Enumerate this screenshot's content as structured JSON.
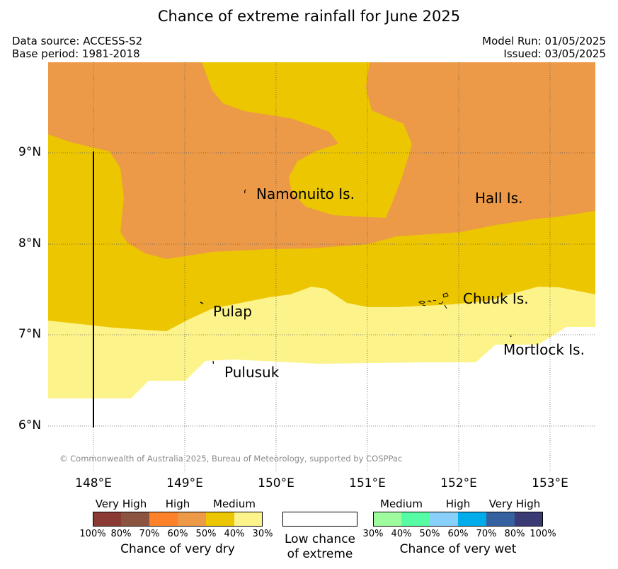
{
  "title": "Chance of extreme rainfall for June 2025",
  "meta": {
    "data_source": "Data source: ACCESS-S2",
    "base_period": "Base period: 1981-2018",
    "model_run": "Model Run: 01/05/2025",
    "issued": "Issued: 03/05/2025"
  },
  "map": {
    "places": [
      {
        "name": "Namonuito Is."
      },
      {
        "name": "Hall Is."
      },
      {
        "name": "Pulap"
      },
      {
        "name": "Chuuk Is."
      },
      {
        "name": "Mortlock Is."
      },
      {
        "name": "Pulusuk"
      }
    ],
    "lat_labels": [
      "9°N",
      "8°N",
      "7°N",
      "6°N"
    ],
    "lon_labels": [
      "148°E",
      "149°E",
      "150°E",
      "151°E",
      "152°E",
      "153°E"
    ],
    "copyright": "© Commonwealth of Australia 2025, Bureau of Meteorology, supported by COSPPac",
    "zone_colors": {
      "high_dry": "#ec9a48",
      "medium_dry": "#ecc600",
      "low_medium_dry": "#fdf38b",
      "low_chance": "#ffffff"
    }
  },
  "legend": {
    "dry": {
      "groups": [
        "Very High",
        "High",
        "Medium"
      ],
      "colors": [
        "#8b3a33",
        "#8b5440",
        "#fd8128",
        "#ec9a48",
        "#ecc600",
        "#fdf38b"
      ],
      "ticks": [
        "100%",
        "80%",
        "70%",
        "60%",
        "50%",
        "40%",
        "30%"
      ],
      "caption": "Chance of very dry"
    },
    "neutral": {
      "caption_line1": "Low chance",
      "caption_line2": "of extreme",
      "color": "#ffffff"
    },
    "wet": {
      "groups": [
        "Medium",
        "High",
        "Very High"
      ],
      "colors": [
        "#9efc9e",
        "#55fca4",
        "#88cffa",
        "#00acea",
        "#3561a0",
        "#3a3a74"
      ],
      "ticks": [
        "30%",
        "40%",
        "50%",
        "60%",
        "70%",
        "80%",
        "100%"
      ],
      "caption": "Chance of very wet"
    }
  }
}
